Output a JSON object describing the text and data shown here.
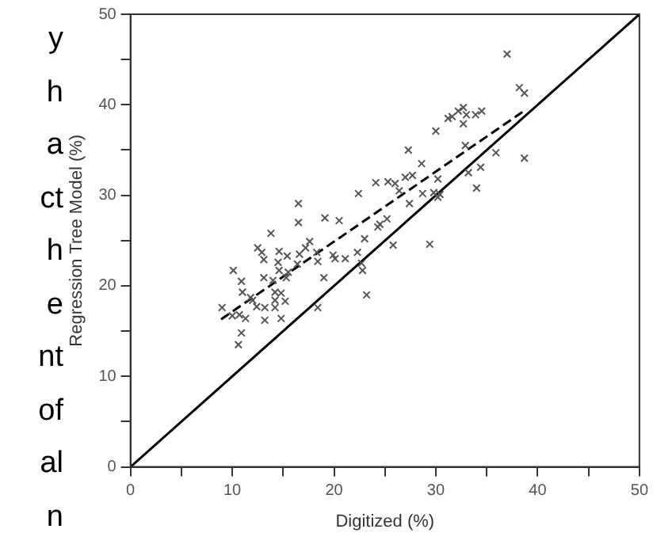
{
  "chart_data": {
    "type": "scatter",
    "xlabel": "Digitized (%)",
    "ylabel": "Regression Tree Model (%)",
    "xlim": [
      0,
      50
    ],
    "ylim": [
      0,
      50
    ],
    "xticks": [
      0,
      {
        "value": 5,
        "label": null
      },
      10,
      {
        "value": 15,
        "label": null
      },
      20,
      {
        "value": 25,
        "label": null
      },
      30,
      {
        "value": 35,
        "label": null
      },
      40,
      {
        "value": 45,
        "label": null
      },
      50
    ],
    "yticks": [
      0,
      {
        "value": 5,
        "label": null
      },
      10,
      {
        "value": 15,
        "label": null
      },
      20,
      {
        "value": 25,
        "label": null
      },
      30,
      {
        "value": 35,
        "label": null
      },
      40,
      {
        "value": 45,
        "label": null
      },
      50
    ],
    "grid": false,
    "legend": false,
    "marker": "cross",
    "annotations": [
      "y",
      "h",
      "a",
      "ct",
      "h",
      "e",
      "nt",
      "of",
      "al",
      "n"
    ],
    "series": [
      {
        "color": "#555555",
        "x": [
          27.3,
          28.6,
          24.1,
          25.3,
          26.0,
          27.0,
          27.7,
          22.4,
          26.4,
          28.7,
          27.4,
          16.5,
          16.5,
          19.1,
          20.5,
          25.2,
          24.3,
          24.5,
          13.8,
          23.0,
          25.8,
          17.6,
          17.2,
          12.5,
          12.9,
          14.6,
          15.4,
          16.6,
          18.3,
          22.3,
          19.9,
          20.1,
          21.1,
          13.1,
          14.5,
          16.4,
          18.4,
          22.7,
          10.1,
          14.6,
          15.5,
          22.8,
          13.1,
          14.0,
          15.3,
          19.0,
          10.9,
          11.0,
          11.8,
          14.2,
          14.8,
          12.0,
          14.2,
          15.2,
          23.2,
          9.0,
          12.4,
          13.2,
          14.2,
          18.4,
          10.0,
          10.7,
          11.3,
          13.2,
          14.8,
          10.9,
          10.6,
          37.0,
          38.2,
          38.7,
          31.2,
          31.6,
          32.2,
          32.7,
          33.0,
          33.9,
          34.5,
          32.7,
          30.0,
          32.9,
          35.9,
          38.7,
          34.4,
          30.2,
          33.2,
          34.0,
          29.8,
          30.2,
          30.4,
          29.4
        ],
        "values": [
          35.0,
          33.5,
          31.4,
          31.5,
          31.3,
          32.0,
          32.2,
          30.2,
          30.5,
          30.2,
          29.1,
          29.1,
          27.0,
          27.5,
          27.2,
          27.4,
          26.5,
          26.8,
          25.8,
          25.2,
          24.5,
          24.9,
          24.2,
          24.2,
          23.7,
          23.8,
          23.3,
          23.5,
          23.7,
          23.7,
          23.4,
          23.0,
          23.0,
          22.9,
          22.6,
          22.4,
          22.7,
          22.5,
          21.7,
          21.7,
          21.5,
          21.7,
          20.9,
          20.6,
          20.9,
          20.9,
          20.5,
          19.3,
          18.7,
          19.3,
          19.2,
          18.4,
          18.4,
          18.3,
          19.0,
          17.6,
          17.7,
          17.6,
          17.6,
          17.6,
          16.7,
          16.8,
          16.4,
          16.2,
          16.4,
          14.8,
          13.5,
          45.6,
          41.9,
          41.3,
          38.5,
          38.7,
          39.3,
          39.7,
          38.9,
          38.9,
          39.3,
          37.9,
          37.1,
          35.5,
          34.7,
          34.1,
          33.1,
          31.8,
          32.5,
          30.8,
          30.3,
          29.8,
          30.1,
          24.6
        ]
      },
      {
        "type": "line",
        "color": "#000000",
        "line_style": "dashed",
        "marker": "none",
        "x": [
          8.9,
          38.5
        ],
        "values": [
          16.3,
          39.2
        ]
      },
      {
        "type": "line",
        "color": "#000000",
        "line_style": "solid",
        "marker": "none",
        "x": [
          0,
          50
        ],
        "values": [
          0,
          50
        ]
      }
    ]
  }
}
